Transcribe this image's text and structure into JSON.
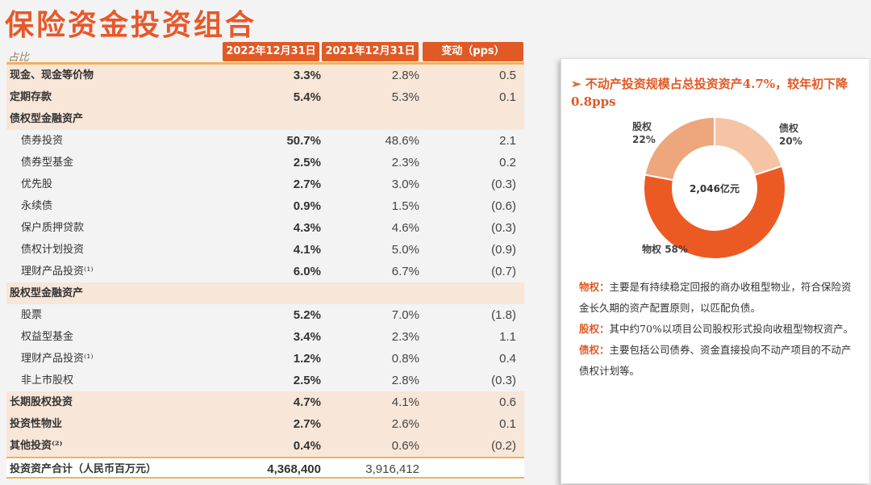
{
  "title": "保险资金投资组合",
  "table": {
    "corner_label": "占比",
    "headers": [
      "2022年12月31日",
      "2021年12月31日",
      "变动（pps）"
    ],
    "rows": [
      {
        "label": "现金、现金等价物",
        "v2022": "3.3%",
        "v2021": "2.8%",
        "change": "0.5"
      },
      {
        "label": "定期存款",
        "v2022": "5.4%",
        "v2021": "5.3%",
        "change": "0.1"
      },
      {
        "label": "债权型金融资产",
        "v2022": "",
        "v2021": "",
        "change": ""
      },
      {
        "label": "债券投资",
        "v2022": "50.7%",
        "v2021": "48.6%",
        "change": "2.1"
      },
      {
        "label": "债券型基金",
        "v2022": "2.5%",
        "v2021": "2.3%",
        "change": "0.2"
      },
      {
        "label": "优先股",
        "v2022": "2.7%",
        "v2021": "3.0%",
        "change": "(0.3)"
      },
      {
        "label": "永续债",
        "v2022": "0.9%",
        "v2021": "1.5%",
        "change": "(0.6)"
      },
      {
        "label": "保户质押贷款",
        "v2022": "4.3%",
        "v2021": "4.6%",
        "change": "(0.3)"
      },
      {
        "label": "债权计划投资",
        "v2022": "4.1%",
        "v2021": "5.0%",
        "change": "(0.9)"
      },
      {
        "label": "理财产品投资⁽¹⁾",
        "v2022": "6.0%",
        "v2021": "6.7%",
        "change": "(0.7)"
      },
      {
        "label": "股权型金融资产",
        "v2022": "",
        "v2021": "",
        "change": ""
      },
      {
        "label": "股票",
        "v2022": "5.2%",
        "v2021": "7.0%",
        "change": "(1.8)"
      },
      {
        "label": "权益型基金",
        "v2022": "3.4%",
        "v2021": "2.3%",
        "change": "1.1"
      },
      {
        "label": "理财产品投资⁽¹⁾",
        "v2022": "1.2%",
        "v2021": "0.8%",
        "change": "0.4"
      },
      {
        "label": "非上市股权",
        "v2022": "2.5%",
        "v2021": "2.8%",
        "change": "(0.3)"
      },
      {
        "label": "长期股权投资",
        "v2022": "4.7%",
        "v2021": "4.1%",
        "change": "0.6"
      },
      {
        "label": "投资性物业",
        "v2022": "2.7%",
        "v2021": "2.6%",
        "change": "0.1"
      },
      {
        "label": "其他投资⁽²⁾",
        "v2022": "0.4%",
        "v2021": "0.6%",
        "change": "(0.2)"
      },
      {
        "label": "投资资产合计（人民币百万元）",
        "v2022": "4,368,400",
        "v2021": "3,916,412",
        "change": ""
      }
    ]
  },
  "panel": {
    "headline": "不动产投资规模占总投资资产4.7%，较年初下降0.8pps",
    "donut": {
      "center_label": "2,046亿元",
      "slices": [
        {
          "name": "债权",
          "value": 20,
          "label": "20%",
          "color": "#f5c4a4"
        },
        {
          "name": "物权",
          "value": 58,
          "label": "58%",
          "color": "#ec5a24"
        },
        {
          "name": "股权",
          "value": 22,
          "label": "22%",
          "color": "#eea67c"
        }
      ]
    },
    "notes": [
      {
        "term": "物权：",
        "text": "主要是有持续稳定回报的商办收租型物业，符合保险资金长久期的资产配置原则，以匹配负债。"
      },
      {
        "term": "股权：",
        "text": "其中约70%以项目公司股权形式投向收租型物权资产。"
      },
      {
        "term": "债权：",
        "text": "主要包括公司债券、资金直接投向不动产项目的不动产债权计划等。"
      }
    ]
  }
}
